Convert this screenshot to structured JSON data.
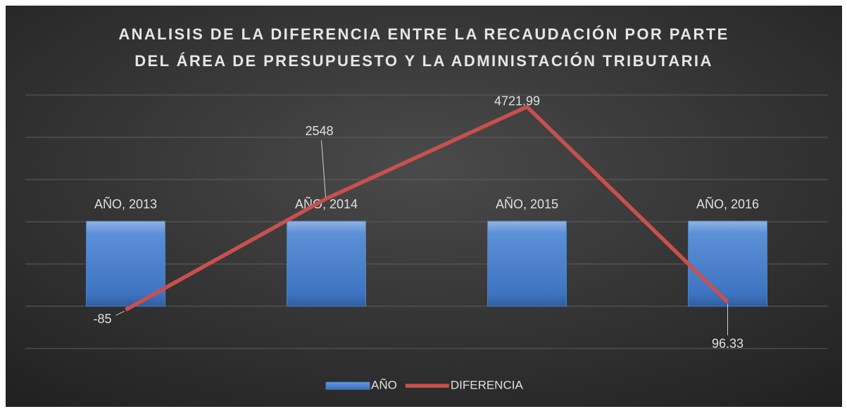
{
  "chart_data": {
    "type": "combo",
    "title": [
      "ANALISIS DE LA DIFERENCIA ENTRE LA RECAUDACIÓN POR PARTE",
      "DEL ÁREA DE PRESUPUESTO Y LA ADMINISTACIÓN TRIBUTARIA"
    ],
    "categories": [
      null,
      null,
      null,
      null
    ],
    "series": [
      {
        "name": "AÑO",
        "type": "bar",
        "color": "#4f81bd",
        "values": [
          2013,
          2014,
          2015,
          2016
        ],
        "value_labels": [
          "AÑO, 2013",
          "AÑO, 2014",
          "AÑO, 2015",
          "AÑO, 2016"
        ]
      },
      {
        "name": "DIFERENCIA",
        "type": "line",
        "color": "#c9504e",
        "values": [
          -85,
          2548,
          4721.99,
          96.33
        ]
      }
    ],
    "ylim": [
      -1000,
      5000
    ],
    "yticks": [
      -1000,
      0,
      1000,
      2000,
      3000,
      4000,
      5000
    ],
    "grid": true,
    "legend": "bottom"
  }
}
